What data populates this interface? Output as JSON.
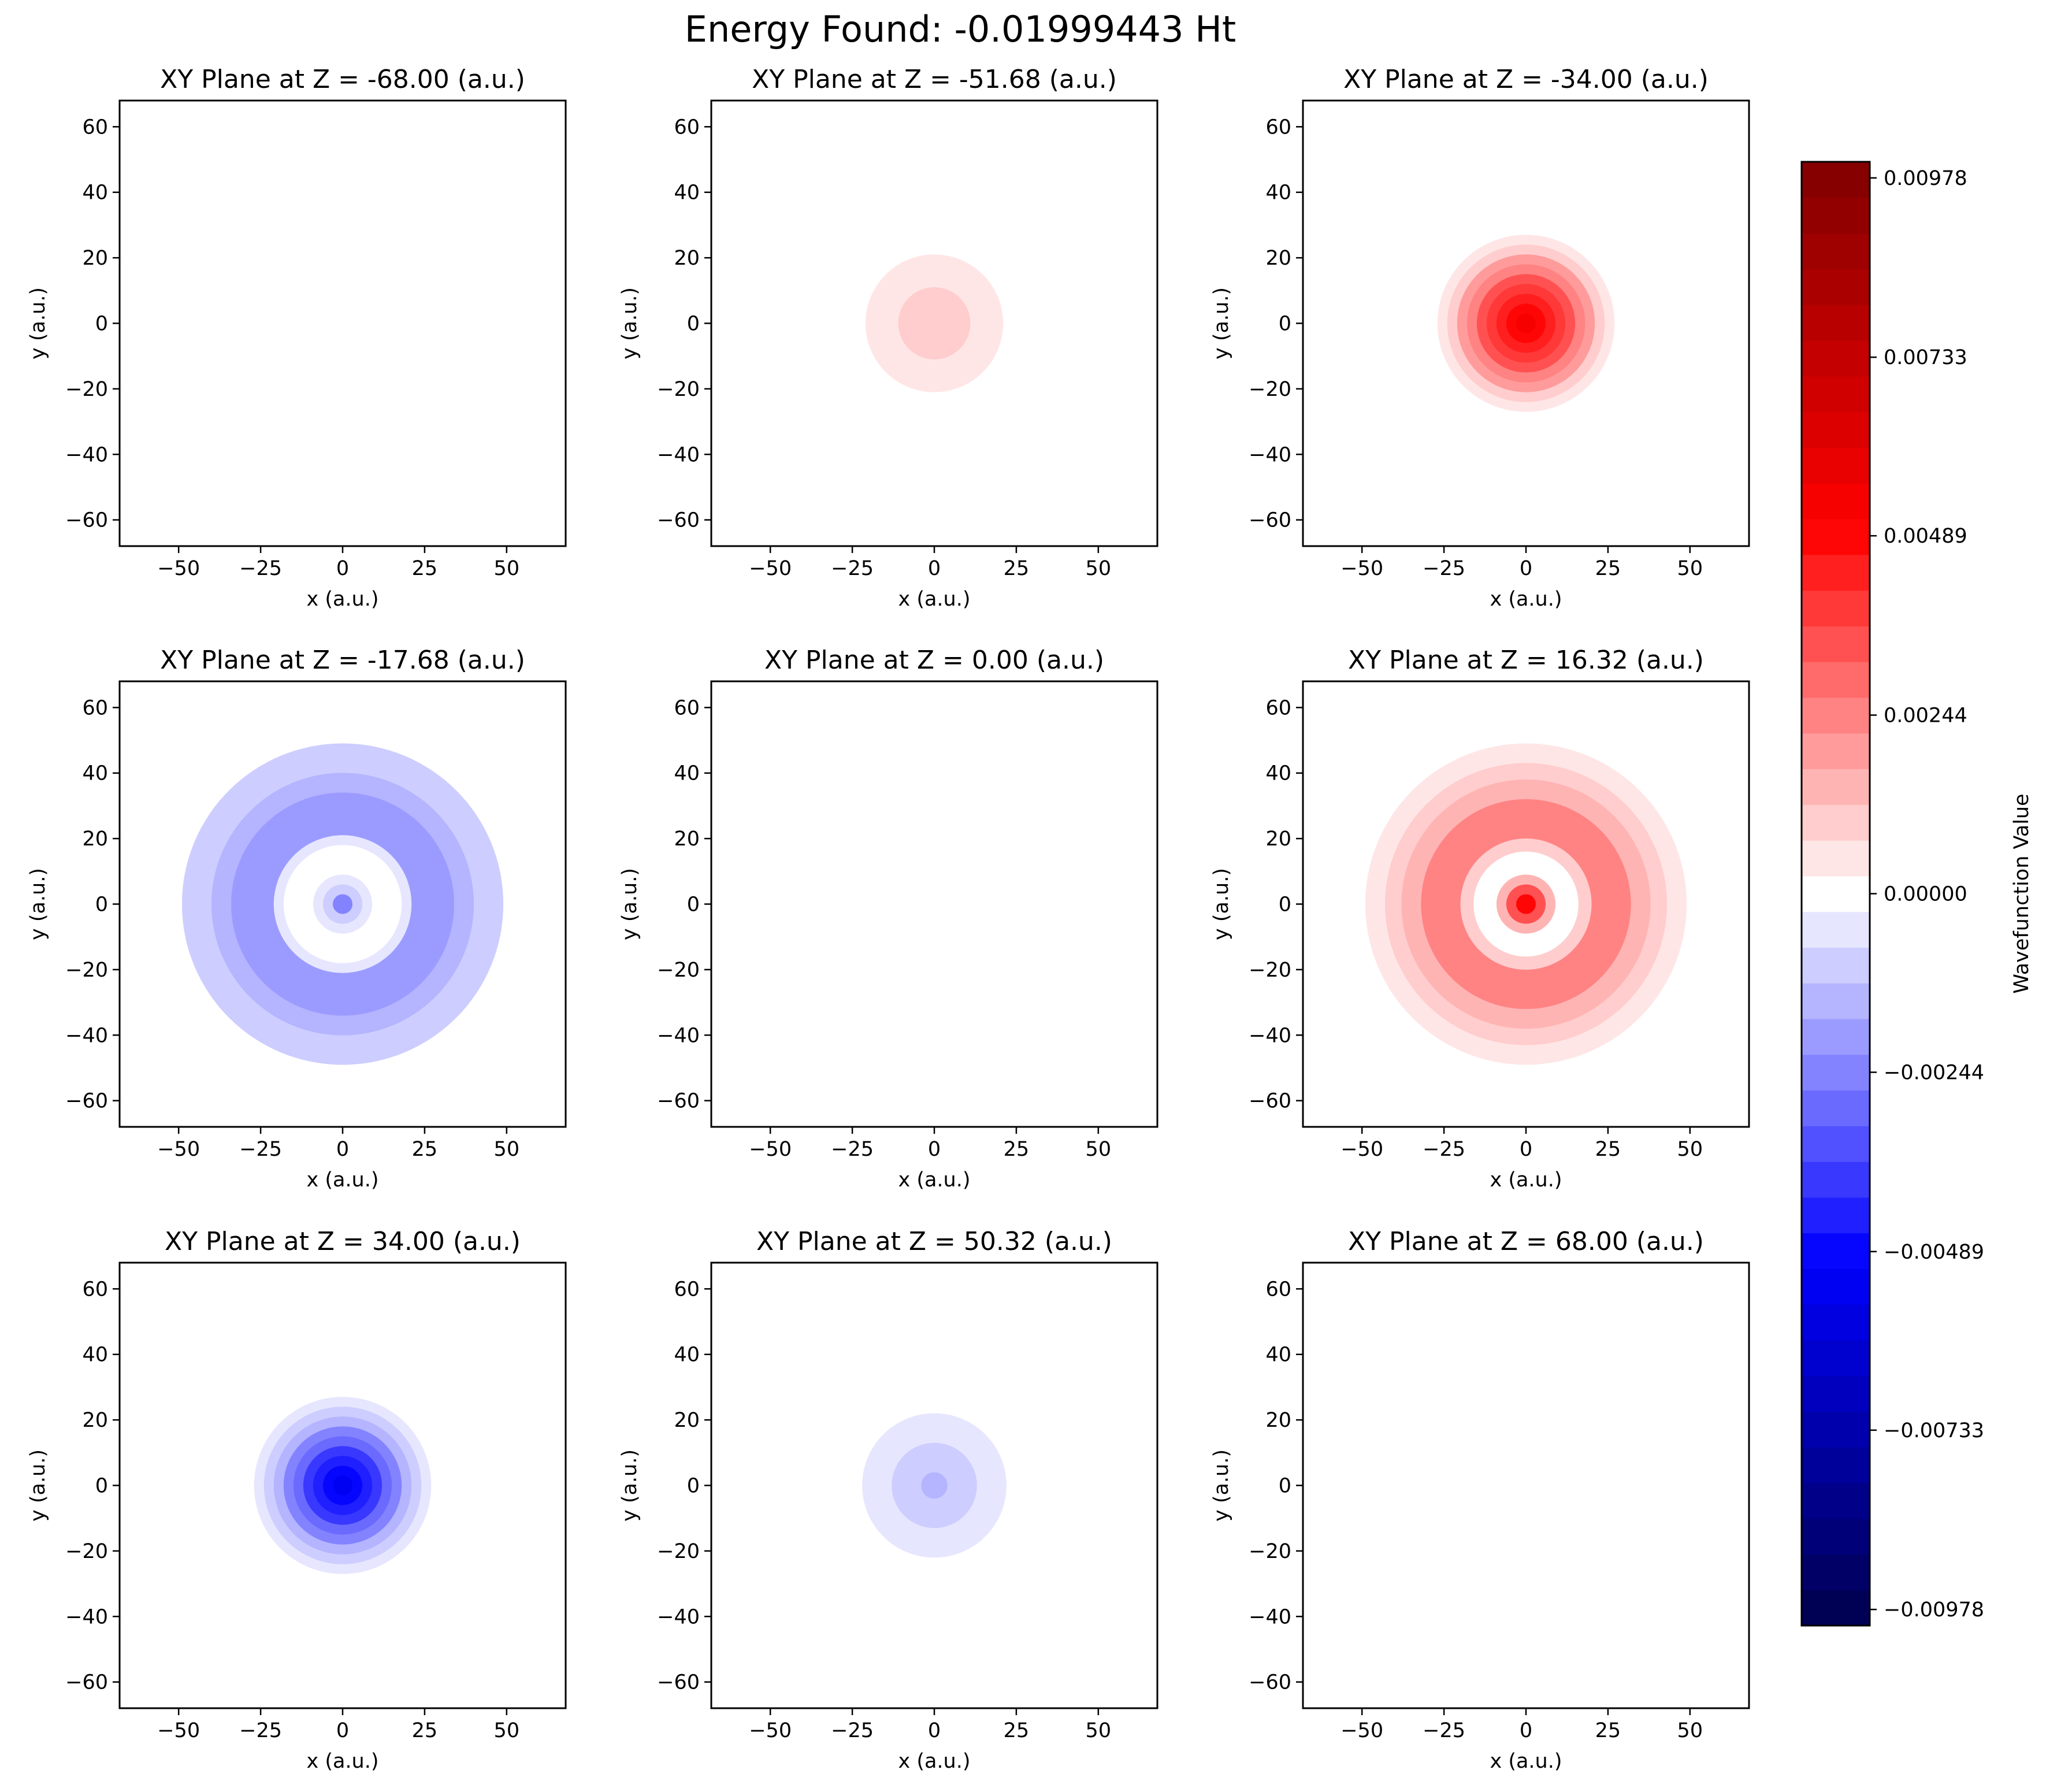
{
  "figure_title": "Energy Found: -0.01999443 Ht",
  "colorbar": {
    "label": "Wavefunction Value",
    "min": -0.01,
    "max": 0.01,
    "tick_labels": [
      "0.00978",
      "0.00733",
      "0.00489",
      "0.00244",
      "0.00000",
      "−0.00244",
      "−0.00489",
      "−0.00733",
      "−0.00978"
    ],
    "tick_values": [
      0.00978,
      0.00733,
      0.00489,
      0.00244,
      0.0,
      -0.00244,
      -0.00489,
      -0.00733,
      -0.00978
    ],
    "colormap": "seismic",
    "levels": 41
  },
  "chart_data": [
    {
      "type": "heatmap",
      "title": "XY Plane at Z = -68.00 (a.u.)",
      "xlabel": "x (a.u.)",
      "ylabel": "y (a.u.)",
      "xlim": [
        -68,
        68
      ],
      "ylim": [
        -68,
        68
      ],
      "xticks": [
        -50,
        -25,
        0,
        25,
        50
      ],
      "yticks": [
        -60,
        -40,
        -20,
        0,
        20,
        40,
        60
      ],
      "x_tick_labels": [
        "−50",
        "−25",
        "0",
        "25",
        "50"
      ],
      "y_tick_labels": [
        "−60",
        "−40",
        "−20",
        "0",
        "20",
        "40",
        "60"
      ],
      "bands": [
        {
          "r": [
            0,
            43
          ],
          "value": 0.0002
        },
        {
          "r": [
            43,
            55
          ],
          "value": -0.0002
        }
      ],
      "background_value": 0.0002,
      "angular": null
    },
    {
      "type": "heatmap",
      "title": "XY Plane at Z = -51.68 (a.u.)",
      "xlabel": "x (a.u.)",
      "ylabel": "y (a.u.)",
      "xlim": [
        -68,
        68
      ],
      "ylim": [
        -68,
        68
      ],
      "xticks": [
        -50,
        -25,
        0,
        25,
        50
      ],
      "yticks": [
        -60,
        -40,
        -20,
        0,
        20,
        40,
        60
      ],
      "x_tick_labels": [
        "−50",
        "−25",
        "0",
        "25",
        "50"
      ],
      "y_tick_labels": [
        "−60",
        "−40",
        "−20",
        "0",
        "20",
        "40",
        "60"
      ],
      "bands": [
        {
          "r": [
            0,
            11
          ],
          "value": 0.0009
        },
        {
          "r": [
            11,
            21
          ],
          "value": 0.0006
        },
        {
          "r": [
            21,
            42
          ],
          "value": 0.0002
        },
        {
          "r": [
            42,
            62
          ],
          "value": -0.0002
        }
      ],
      "background_value": 0.0002,
      "angular": null
    },
    {
      "type": "heatmap",
      "title": "XY Plane at Z = -34.00 (a.u.)",
      "xlabel": "x (a.u.)",
      "ylabel": "y (a.u.)",
      "xlim": [
        -68,
        68
      ],
      "ylim": [
        -68,
        68
      ],
      "xticks": [
        -50,
        -25,
        0,
        25,
        50
      ],
      "yticks": [
        -60,
        -40,
        -20,
        0,
        20,
        40,
        60
      ],
      "x_tick_labels": [
        "−50",
        "−25",
        "0",
        "25",
        "50"
      ],
      "y_tick_labels": [
        "−60",
        "−40",
        "−20",
        "0",
        "20",
        "40",
        "60"
      ],
      "bands": [
        {
          "r": [
            0,
            3
          ],
          "value": 0.0053
        },
        {
          "r": [
            3,
            6
          ],
          "value": 0.0048
        },
        {
          "r": [
            6,
            9
          ],
          "value": 0.0043
        },
        {
          "r": [
            9,
            12
          ],
          "value": 0.0038
        },
        {
          "r": [
            12,
            15
          ],
          "value": 0.0032
        },
        {
          "r": [
            15,
            18
          ],
          "value": 0.0026
        },
        {
          "r": [
            18,
            21
          ],
          "value": 0.0019
        },
        {
          "r": [
            21,
            24
          ],
          "value": 0.0012
        },
        {
          "r": [
            24,
            27
          ],
          "value": 0.0006
        },
        {
          "r": [
            27,
            71
          ],
          "value": -0.0002
        }
      ],
      "background_value": 0.0002,
      "angular": null
    },
    {
      "type": "heatmap",
      "title": "XY Plane at Z = -17.68 (a.u.)",
      "xlabel": "x (a.u.)",
      "ylabel": "y (a.u.)",
      "xlim": [
        -68,
        68
      ],
      "ylim": [
        -68,
        68
      ],
      "xticks": [
        -50,
        -25,
        0,
        25,
        50
      ],
      "yticks": [
        -60,
        -40,
        -20,
        0,
        20,
        40,
        60
      ],
      "x_tick_labels": [
        "−50",
        "−25",
        "0",
        "25",
        "50"
      ],
      "y_tick_labels": [
        "−60",
        "−40",
        "−20",
        "0",
        "20",
        "40",
        "60"
      ],
      "bands": [
        {
          "r": [
            0,
            3
          ],
          "value": -0.0025
        },
        {
          "r": [
            3,
            6
          ],
          "value": -0.0012
        },
        {
          "r": [
            6,
            9
          ],
          "value": -0.0006
        },
        {
          "r": [
            9,
            18
          ],
          "value": 0.0002
        },
        {
          "r": [
            18,
            21
          ],
          "value": -0.0006
        },
        {
          "r": [
            21,
            34
          ],
          "value": -0.0019
        },
        {
          "r": [
            34,
            40
          ],
          "value": -0.0015
        },
        {
          "r": [
            40,
            49
          ],
          "value": -0.0009
        },
        {
          "r": [
            49,
            71
          ],
          "value": -0.0002
        }
      ],
      "background_value": 0.0002,
      "angular": null
    },
    {
      "type": "heatmap",
      "title": "XY Plane at Z = 0.00 (a.u.)",
      "xlabel": "x (a.u.)",
      "ylabel": "y (a.u.)",
      "xlim": [
        -68,
        68
      ],
      "ylim": [
        -68,
        68
      ],
      "xticks": [
        -50,
        -25,
        0,
        25,
        50
      ],
      "yticks": [
        -60,
        -40,
        -20,
        0,
        20,
        40,
        60
      ],
      "x_tick_labels": [
        "−50",
        "−25",
        "0",
        "25",
        "50"
      ],
      "y_tick_labels": [
        "−60",
        "−40",
        "−20",
        "0",
        "20",
        "40",
        "60"
      ],
      "bands": [],
      "background_value": 0.0002,
      "angular": {
        "value": 0.0002,
        "inner_radius": 20,
        "boundary_angles_deg": [
          15,
          85,
          150,
          202,
          262,
          330
        ]
      }
    },
    {
      "type": "heatmap",
      "title": "XY Plane at Z = 16.32 (a.u.)",
      "xlabel": "x (a.u.)",
      "ylabel": "y (a.u.)",
      "xlim": [
        -68,
        68
      ],
      "ylim": [
        -68,
        68
      ],
      "xticks": [
        -50,
        -25,
        0,
        25,
        50
      ],
      "yticks": [
        -60,
        -40,
        -20,
        0,
        20,
        40,
        60
      ],
      "x_tick_labels": [
        "−50",
        "−25",
        "0",
        "25",
        "50"
      ],
      "y_tick_labels": [
        "−60",
        "−40",
        "−20",
        "0",
        "20",
        "40",
        "60"
      ],
      "bands": [
        {
          "r": [
            0,
            3
          ],
          "value": 0.0048
        },
        {
          "r": [
            3,
            6
          ],
          "value": 0.0032
        },
        {
          "r": [
            6,
            9
          ],
          "value": 0.0015
        },
        {
          "r": [
            9,
            16
          ],
          "value": -0.0002
        },
        {
          "r": [
            16,
            20
          ],
          "value": 0.0009
        },
        {
          "r": [
            20,
            32
          ],
          "value": 0.0022
        },
        {
          "r": [
            32,
            38
          ],
          "value": 0.0017
        },
        {
          "r": [
            38,
            43
          ],
          "value": 0.0012
        },
        {
          "r": [
            43,
            49
          ],
          "value": 0.0006
        },
        {
          "r": [
            49,
            71
          ],
          "value": 0.0002
        }
      ],
      "background_value": -0.0002,
      "angular": null
    },
    {
      "type": "heatmap",
      "title": "XY Plane at Z = 34.00 (a.u.)",
      "xlabel": "x (a.u.)",
      "ylabel": "y (a.u.)",
      "xlim": [
        -68,
        68
      ],
      "ylim": [
        -68,
        68
      ],
      "xticks": [
        -50,
        -25,
        0,
        25,
        50
      ],
      "yticks": [
        -60,
        -40,
        -20,
        0,
        20,
        40,
        60
      ],
      "x_tick_labels": [
        "−50",
        "−25",
        "0",
        "25",
        "50"
      ],
      "y_tick_labels": [
        "−60",
        "−40",
        "−20",
        "0",
        "20",
        "40",
        "60"
      ],
      "bands": [
        {
          "r": [
            0,
            3
          ],
          "value": -0.0055
        },
        {
          "r": [
            3,
            6
          ],
          "value": -0.005
        },
        {
          "r": [
            6,
            9
          ],
          "value": -0.0044
        },
        {
          "r": [
            9,
            12
          ],
          "value": -0.0038
        },
        {
          "r": [
            12,
            15
          ],
          "value": -0.0031
        },
        {
          "r": [
            15,
            18
          ],
          "value": -0.0024
        },
        {
          "r": [
            18,
            21
          ],
          "value": -0.0017
        },
        {
          "r": [
            21,
            24
          ],
          "value": -0.001
        },
        {
          "r": [
            24,
            27
          ],
          "value": -0.0005
        },
        {
          "r": [
            27,
            71
          ],
          "value": 0.0002
        }
      ],
      "background_value": -0.0002,
      "angular": null
    },
    {
      "type": "heatmap",
      "title": "XY Plane at Z = 50.32 (a.u.)",
      "xlabel": "x (a.u.)",
      "ylabel": "y (a.u.)",
      "xlim": [
        -68,
        68
      ],
      "ylim": [
        -68,
        68
      ],
      "xticks": [
        -50,
        -25,
        0,
        25,
        50
      ],
      "yticks": [
        -60,
        -40,
        -20,
        0,
        20,
        40,
        60
      ],
      "x_tick_labels": [
        "−50",
        "−25",
        "0",
        "25",
        "50"
      ],
      "y_tick_labels": [
        "−60",
        "−40",
        "−20",
        "0",
        "20",
        "40",
        "60"
      ],
      "bands": [
        {
          "r": [
            0,
            4
          ],
          "value": -0.0013
        },
        {
          "r": [
            4,
            13
          ],
          "value": -0.0009
        },
        {
          "r": [
            13,
            22
          ],
          "value": -0.0006
        },
        {
          "r": [
            22,
            41
          ],
          "value": -0.0002
        },
        {
          "r": [
            41,
            63
          ],
          "value": 0.0002
        }
      ],
      "background_value": -0.0002,
      "angular": null
    },
    {
      "type": "heatmap",
      "title": "XY Plane at Z = 68.00 (a.u.)",
      "xlabel": "x (a.u.)",
      "ylabel": "y (a.u.)",
      "xlim": [
        -68,
        68
      ],
      "ylim": [
        -68,
        68
      ],
      "xticks": [
        -50,
        -25,
        0,
        25,
        50
      ],
      "yticks": [
        -60,
        -40,
        -20,
        0,
        20,
        40,
        60
      ],
      "x_tick_labels": [
        "−50",
        "−25",
        "0",
        "25",
        "50"
      ],
      "y_tick_labels": [
        "−60",
        "−40",
        "−20",
        "0",
        "20",
        "40",
        "60"
      ],
      "bands": [
        {
          "r": [
            0,
            43
          ],
          "value": -0.0002
        },
        {
          "r": [
            43,
            55
          ],
          "value": 0.0002
        }
      ],
      "background_value": -0.0002,
      "angular": null
    }
  ]
}
